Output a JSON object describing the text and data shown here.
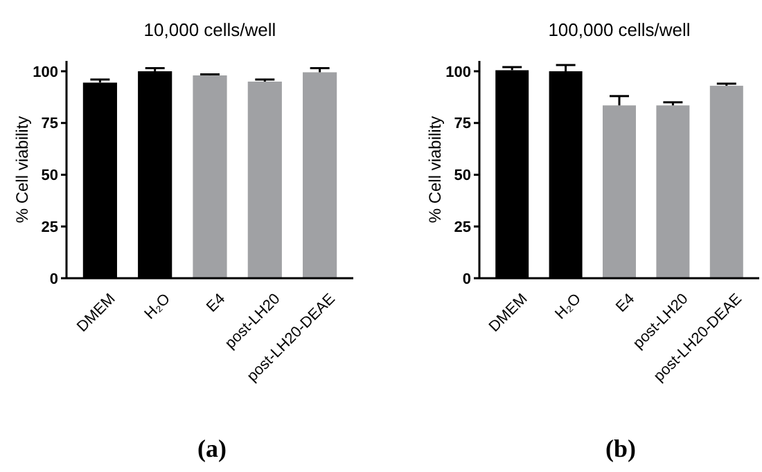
{
  "chart_data": [
    {
      "type": "bar",
      "title": "10,000 cells/well",
      "ylabel": "% Cell viability",
      "categories": [
        "DMEM",
        "H₂O",
        "E4",
        "post-LH20",
        "post-LH20-DEAE"
      ],
      "values": [
        94.5,
        100,
        98,
        95,
        99.5
      ],
      "errors": [
        1.5,
        1.5,
        0.5,
        1,
        2
      ],
      "colors": [
        "#000000",
        "#000000",
        "#a0a1a4",
        "#a0a1a4",
        "#a0a1a4"
      ],
      "ylim": [
        0,
        105
      ],
      "yticks": [
        0,
        25,
        50,
        75,
        100
      ],
      "grid": false,
      "annotations": [
        "(a)"
      ]
    },
    {
      "type": "bar",
      "title": "100,000 cells/well",
      "ylabel": "% Cell viability",
      "categories": [
        "DMEM",
        "H₂O",
        "E4",
        "post-LH20",
        "post-LH20-DEAE"
      ],
      "values": [
        100.5,
        100,
        83.5,
        83.5,
        93
      ],
      "errors": [
        1.5,
        3,
        4.5,
        1.5,
        1
      ],
      "colors": [
        "#000000",
        "#000000",
        "#a0a1a4",
        "#a0a1a4",
        "#a0a1a4"
      ],
      "ylim": [
        0,
        105
      ],
      "yticks": [
        0,
        25,
        50,
        75,
        100
      ],
      "grid": false,
      "annotations": [
        "(b)"
      ]
    }
  ]
}
